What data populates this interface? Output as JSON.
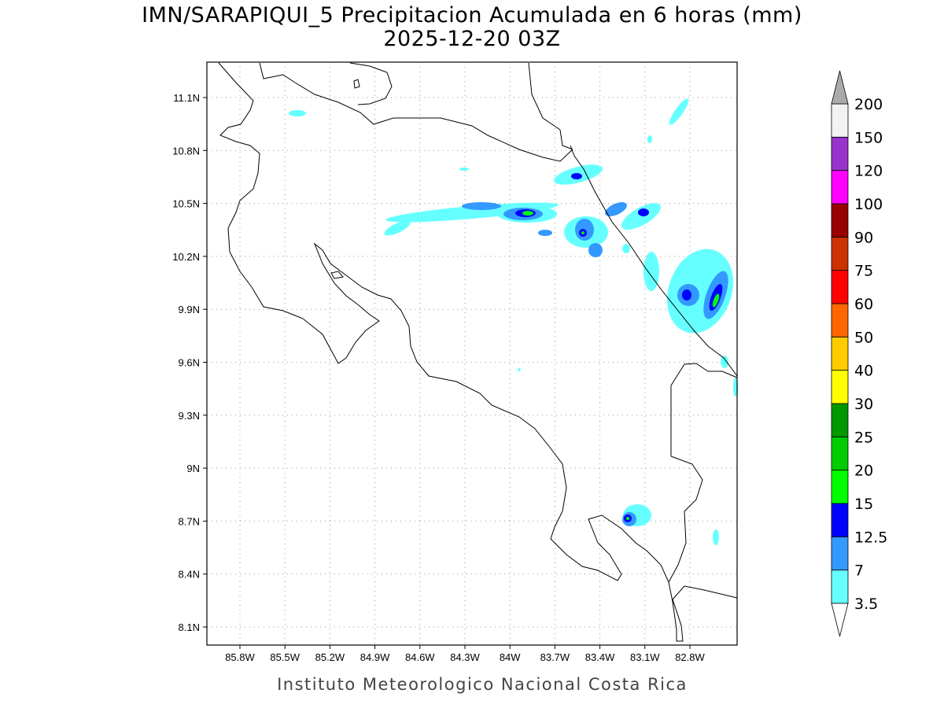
{
  "header": {
    "title": "IMN/SARAPIQUI_5 Precipitacion Acumulada en 6 horas (mm)",
    "subtitle": "2025-12-20 03Z"
  },
  "map": {
    "lat_labels": [
      "8.1N",
      "8.4N",
      "8.7N",
      "9N",
      "9.3N",
      "9.6N",
      "9.9N",
      "10.2N",
      "10.5N",
      "10.8N",
      "11.1N"
    ],
    "lon_labels": [
      "85.8W",
      "85.5W",
      "85.2W",
      "84.9W",
      "84.6W",
      "84.3W",
      "84W",
      "83.7W",
      "83.4W",
      "83.1W",
      "82.8W"
    ]
  },
  "legend": {
    "labels": [
      "3.5",
      "7",
      "12.5",
      "15",
      "20",
      "25",
      "30",
      "40",
      "50",
      "60",
      "75",
      "90",
      "100",
      "120",
      "150",
      "200"
    ],
    "colors": [
      "#66ffff",
      "#3399ff",
      "#0000ff",
      "#00ff00",
      "#00cc00",
      "#009900",
      "#ffff00",
      "#ffcc00",
      "#ff6600",
      "#ff0000",
      "#cc3300",
      "#990000",
      "#ff00ff",
      "#9933cc",
      "#f2f2f2"
    ],
    "under_color": "#ffffff",
    "over_color": "#aaaaaa"
  },
  "footer": "Instituto Meteorologico Nacional Costa Rica"
}
